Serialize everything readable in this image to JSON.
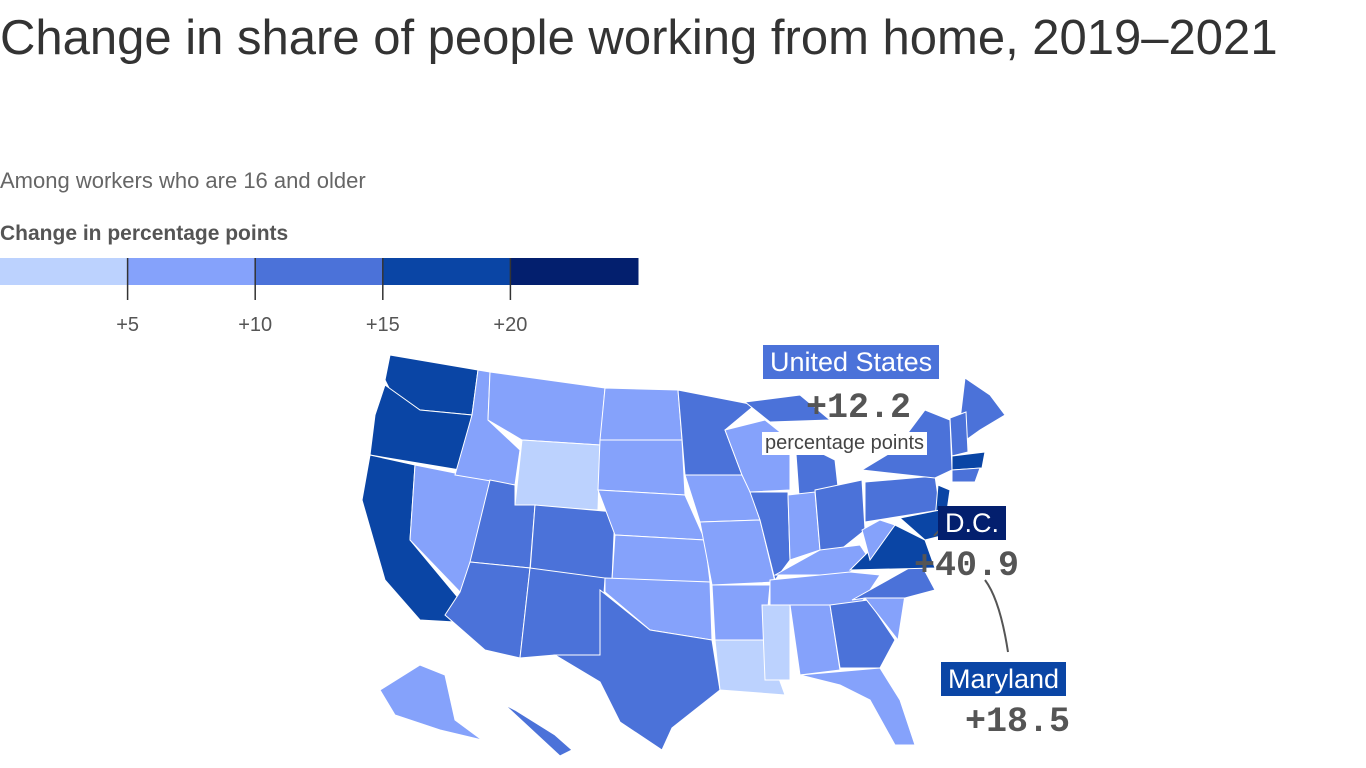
{
  "chart_data": {
    "type": "choropleth",
    "title": "Change in share of people working from home, 2019–2021",
    "subtitle": "Among workers who are 16 and older",
    "legend": {
      "title": "Change in percentage points",
      "colors": [
        "#bcd2fe",
        "#85a2fb",
        "#4b72d9",
        "#0a45a5",
        "#031f6e"
      ],
      "lim": [
        0,
        25
      ],
      "ticks": [
        {
          "value": 5,
          "label": "+5"
        },
        {
          "value": 10,
          "label": "+10"
        },
        {
          "value": 15,
          "label": "+15"
        },
        {
          "value": 20,
          "label": "+20"
        }
      ]
    },
    "annotations": [
      {
        "name": "United States",
        "value": 12.2,
        "value_label": "+12.2",
        "unit": "percentage points",
        "color": "#4b72d9"
      },
      {
        "name": "D.C.",
        "value": 40.9,
        "value_label": "+40.9",
        "color": "#031f6e"
      },
      {
        "name": "Maryland",
        "value": 18.5,
        "value_label": "+18.5",
        "color": "#0a45a5"
      }
    ]
  }
}
